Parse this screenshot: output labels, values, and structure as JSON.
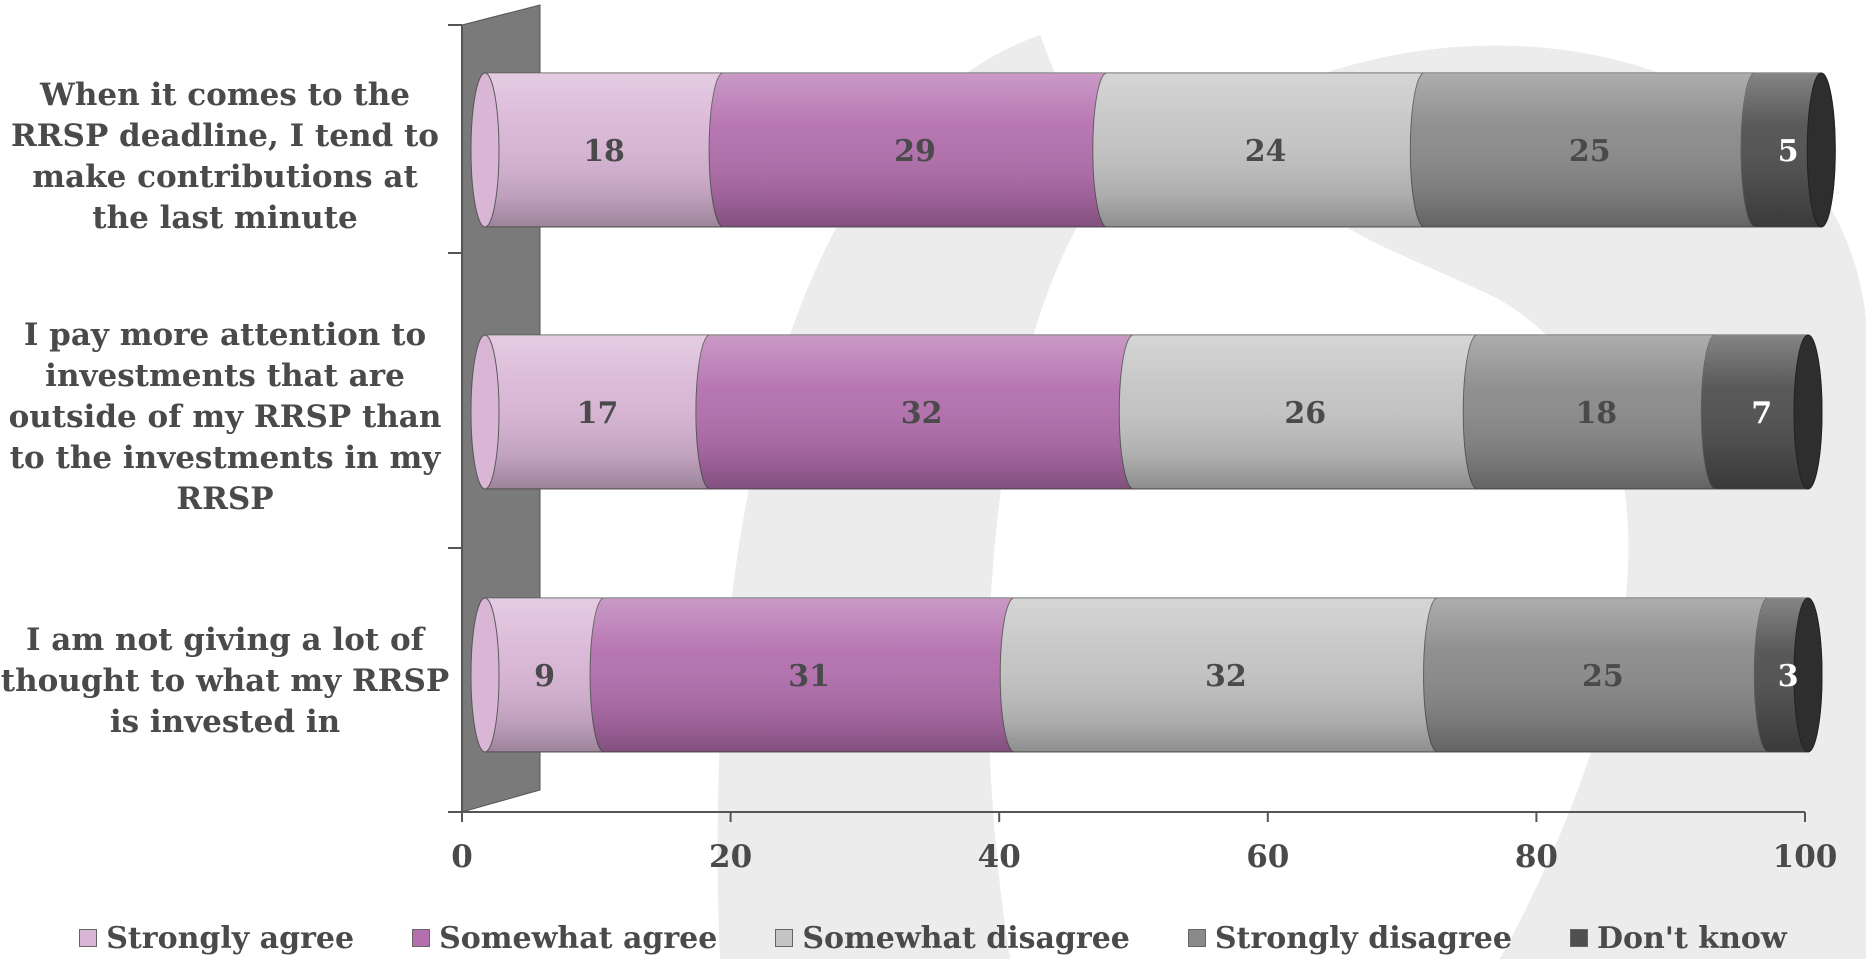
{
  "chart_data": {
    "type": "bar",
    "orientation": "horizontal",
    "stacked": true,
    "categories": [
      "When it comes to the RRSP deadline, I tend to make contributions at the last minute",
      "I pay more attention to investments that are outside of my RRSP than to the investments in my RRSP",
      "I am not giving a lot of thought to what my RRSP is invested in"
    ],
    "series": [
      {
        "name": "Strongly agree",
        "color": "#d9b6d6",
        "values": [
          18,
          17,
          9
        ]
      },
      {
        "name": "Somewhat agree",
        "color": "#b36fae",
        "values": [
          29,
          32,
          31
        ]
      },
      {
        "name": "Somewhat disagree",
        "color": "#c4c4c4",
        "values": [
          24,
          26,
          32
        ]
      },
      {
        "name": "Strongly disagree",
        "color": "#8a8a8a",
        "values": [
          25,
          18,
          25
        ]
      },
      {
        "name": "Don't know",
        "color": "#505050",
        "values": [
          5,
          7,
          3
        ]
      }
    ],
    "xlim": [
      0,
      100
    ],
    "xticks": [
      0,
      20,
      40,
      60,
      80,
      100
    ],
    "xlabel": "",
    "ylabel": "",
    "title": "",
    "legend_position": "bottom",
    "grid": false
  },
  "labels": {
    "cat0": "When it comes to the RRSP deadline, I tend to make contributions at the last minute",
    "cat1": "I pay more attention to investments that are outside of my RRSP than to the investments in my RRSP",
    "cat2": "I am not giving a lot of thought to what my RRSP is invested in",
    "legend0": "Strongly agree",
    "legend1": "Somewhat agree",
    "legend2": "Somewhat disagree",
    "legend3": "Strongly disagree",
    "legend4": "Don't know"
  }
}
